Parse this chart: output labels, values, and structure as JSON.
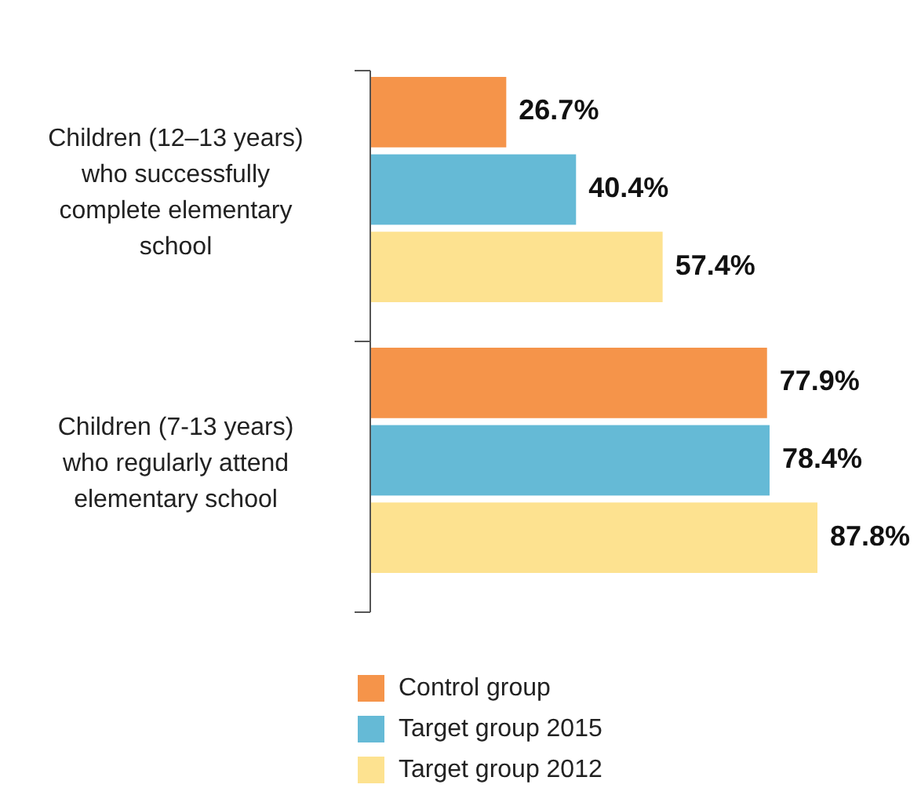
{
  "chart_data": {
    "type": "bar",
    "orientation": "horizontal",
    "categories": [
      "Children (12–13 years) who successfully complete elementary school",
      "Children (7-13 years) who regularly attend elementary school"
    ],
    "series": [
      {
        "name": "Control group",
        "color": "#f5944a",
        "values": [
          26.7,
          77.9
        ],
        "value_labels": [
          "26.7%",
          "77.9%"
        ]
      },
      {
        "name": "Target group 2015",
        "color": "#65bad6",
        "values": [
          40.4,
          78.4
        ],
        "value_labels": [
          "40.4%",
          "78.4%"
        ]
      },
      {
        "name": "Target group 2012",
        "color": "#fde290",
        "values": [
          57.4,
          87.8
        ],
        "value_labels": [
          "57.4%",
          "87.8%"
        ]
      }
    ],
    "legend": "bottom",
    "grid": false
  }
}
